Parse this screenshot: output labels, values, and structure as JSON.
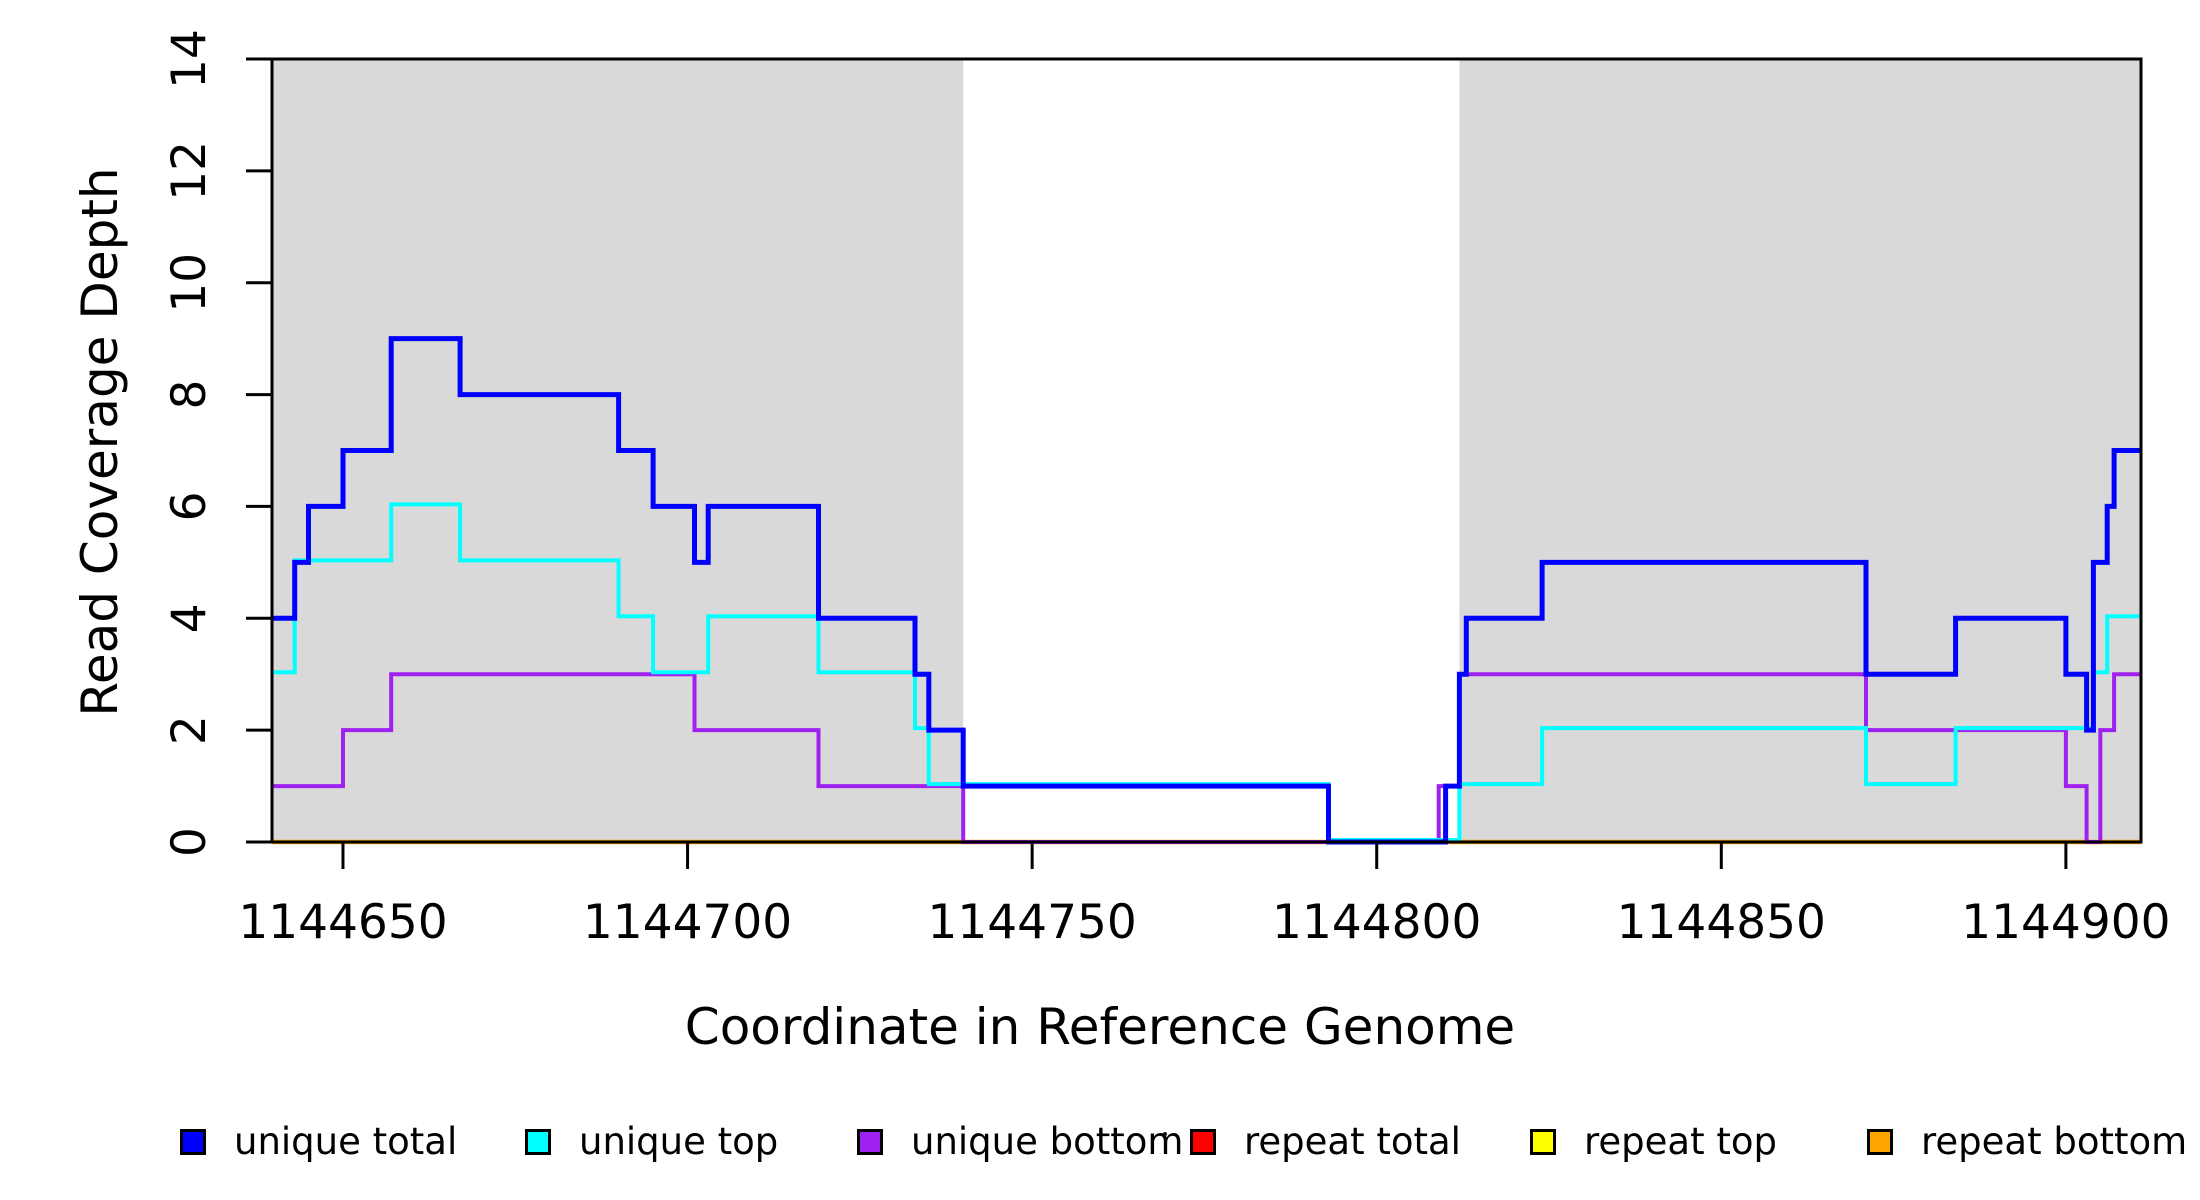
{
  "chart_data": {
    "type": "line",
    "subtype": "step-after",
    "title": "",
    "xlabel": "Coordinate in Reference Genome",
    "ylabel": "Read Coverage Depth",
    "xlim": [
      1144639.7,
      1144910.9
    ],
    "ylim": [
      0,
      14
    ],
    "x_ticks": [
      1144650,
      1144700,
      1144750,
      1144800,
      1144850,
      1144900
    ],
    "y_ticks": [
      0,
      2,
      4,
      6,
      8,
      10,
      12,
      14
    ],
    "grid": false,
    "legend_position": "bottom",
    "plot_background": "#ffffff",
    "shaded_regions": {
      "color": "#d9d9d9",
      "regions": [
        [
          1144639.7,
          1144740
        ],
        [
          1144812,
          1144910.9
        ]
      ]
    },
    "series": [
      {
        "name": "unique total",
        "color": "#0000ff",
        "steps": [
          [
            1144639.7,
            4
          ],
          [
            1144643,
            5
          ],
          [
            1144645,
            6
          ],
          [
            1144650,
            7
          ],
          [
            1144657,
            9
          ],
          [
            1144667,
            8
          ],
          [
            1144690,
            7
          ],
          [
            1144695,
            6
          ],
          [
            1144701,
            5
          ],
          [
            1144703,
            6
          ],
          [
            1144719,
            4
          ],
          [
            1144733,
            3
          ],
          [
            1144735,
            2
          ],
          [
            1144740,
            1
          ],
          [
            1144793,
            0
          ],
          [
            1144810,
            1
          ],
          [
            1144812,
            3
          ],
          [
            1144813,
            4
          ],
          [
            1144824,
            5
          ],
          [
            1144871,
            3
          ],
          [
            1144884,
            4
          ],
          [
            1144900,
            3
          ],
          [
            1144903,
            2
          ],
          [
            1144904,
            5
          ],
          [
            1144906,
            6
          ],
          [
            1144907,
            7
          ]
        ]
      },
      {
        "name": "unique top",
        "color": "#00ffff",
        "steps": [
          [
            1144639.7,
            3
          ],
          [
            1144643,
            5
          ],
          [
            1144657,
            6
          ],
          [
            1144667,
            5
          ],
          [
            1144690,
            4
          ],
          [
            1144695,
            3
          ],
          [
            1144703,
            4
          ],
          [
            1144719,
            3
          ],
          [
            1144733,
            2
          ],
          [
            1144735,
            1
          ],
          [
            1144793,
            0
          ],
          [
            1144812,
            1
          ],
          [
            1144824,
            2
          ],
          [
            1144871,
            1
          ],
          [
            1144884,
            2
          ],
          [
            1144904,
            3
          ],
          [
            1144906,
            4
          ]
        ]
      },
      {
        "name": "unique bottom",
        "color": "#a020f0",
        "steps": [
          [
            1144639.7,
            1
          ],
          [
            1144650,
            2
          ],
          [
            1144657,
            3
          ],
          [
            1144701,
            2
          ],
          [
            1144719,
            1
          ],
          [
            1144740,
            0
          ],
          [
            1144809,
            1
          ],
          [
            1144812,
            3
          ],
          [
            1144871,
            2
          ],
          [
            1144900,
            1
          ],
          [
            1144903,
            0
          ],
          [
            1144905,
            2
          ],
          [
            1144907,
            3
          ]
        ]
      },
      {
        "name": "repeat total",
        "color": "#ff0000",
        "steps": [
          [
            1144639.7,
            0
          ]
        ]
      },
      {
        "name": "repeat top",
        "color": "#ffff00",
        "steps": [
          [
            1144639.7,
            0
          ]
        ]
      },
      {
        "name": "repeat bottom",
        "color": "#ffa500",
        "steps": [
          [
            1144639.7,
            0
          ]
        ]
      }
    ],
    "legend": [
      {
        "label": "unique total",
        "color": "#0000ff"
      },
      {
        "label": "unique top",
        "color": "#00ffff"
      },
      {
        "label": "unique bottom",
        "color": "#a020f0"
      },
      {
        "label": "repeat total",
        "color": "#ff0000"
      },
      {
        "label": "repeat top",
        "color": "#ffff00"
      },
      {
        "label": "repeat bottom",
        "color": "#ffa500"
      }
    ]
  }
}
